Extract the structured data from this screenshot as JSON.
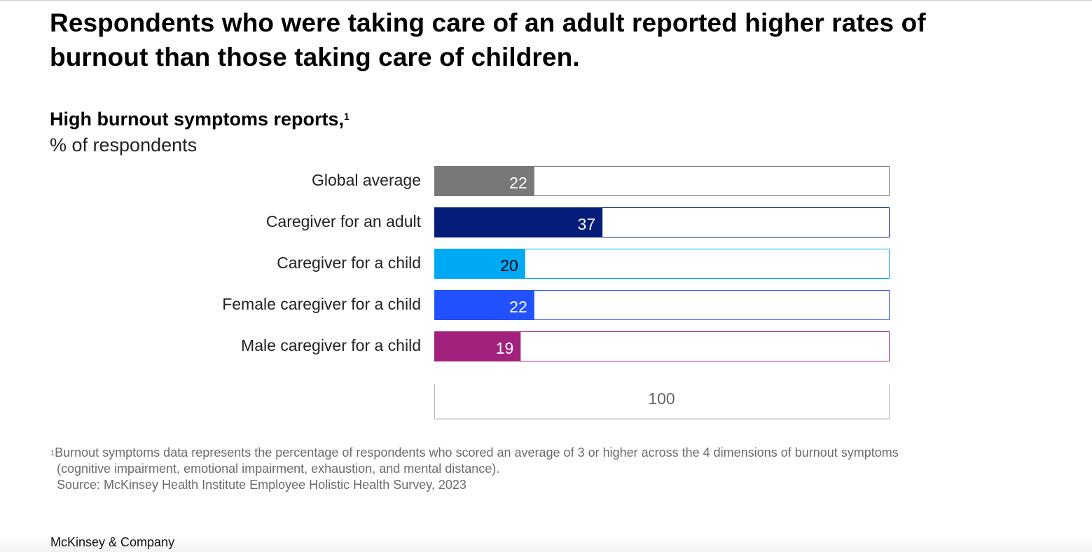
{
  "headline": "Respondents who were taking care of an adult reported higher rates of burnout than those taking care of children.",
  "subtitle": "High burnout symptoms reports,",
  "subtitle_footnote_marker": "1",
  "unit_label": "% of respondents",
  "chart_data": {
    "type": "bar",
    "orientation": "horizontal",
    "title": "High burnout symptoms reports",
    "xlabel": "% of respondents",
    "xlim": [
      0,
      100
    ],
    "scale_label": "100",
    "categories": [
      "Global average",
      "Caregiver for an adult",
      "Caregiver for a child",
      "Female caregiver for a child",
      "Male caregiver for a child"
    ],
    "values": [
      22,
      37,
      20,
      22,
      19
    ],
    "colors": [
      "#787878",
      "#051c7a",
      "#00a9f4",
      "#2251ff",
      "#a2217c"
    ],
    "label_colors": [
      "#ffffff",
      "#ffffff",
      "#000000",
      "#ffffff",
      "#ffffff"
    ]
  },
  "footnote": {
    "marker": "1",
    "line1": "Burnout symptoms data represents the percentage of respondents who scored an average of 3 or higher across the 4 dimensions of burnout symptoms",
    "line2": "(cognitive impairment, emotional impairment, exhaustion, and mental distance).",
    "source": "Source: McKinsey Health Institute Employee Holistic Health Survey, 2023"
  },
  "brand": "McKinsey & Company"
}
